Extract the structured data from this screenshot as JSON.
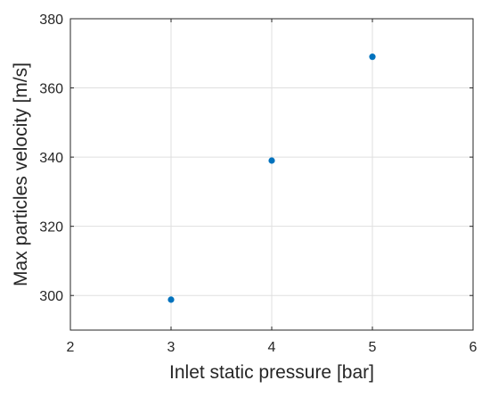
{
  "chart_data": {
    "type": "scatter",
    "title": "",
    "xlabel": "Inlet static pressure [bar]",
    "ylabel": "Max particles velocity [m/s]",
    "xlim": [
      2,
      6
    ],
    "ylim": [
      290,
      380
    ],
    "x_ticks": [
      2,
      3,
      4,
      5,
      6
    ],
    "y_ticks": [
      300,
      320,
      340,
      360,
      380
    ],
    "x_tick_labels": [
      "2",
      "3",
      "4",
      "5",
      "6"
    ],
    "y_tick_labels": [
      "300",
      "320",
      "340",
      "360",
      "380"
    ],
    "grid": true,
    "legend": "none",
    "series": [
      {
        "x": [
          3,
          4,
          5
        ],
        "y": [
          298.8,
          339,
          369
        ],
        "color": "#0072bd"
      }
    ]
  },
  "colors": {
    "marker": "#0072bd",
    "axis": "#262626",
    "grid": "#dfdfdf"
  }
}
